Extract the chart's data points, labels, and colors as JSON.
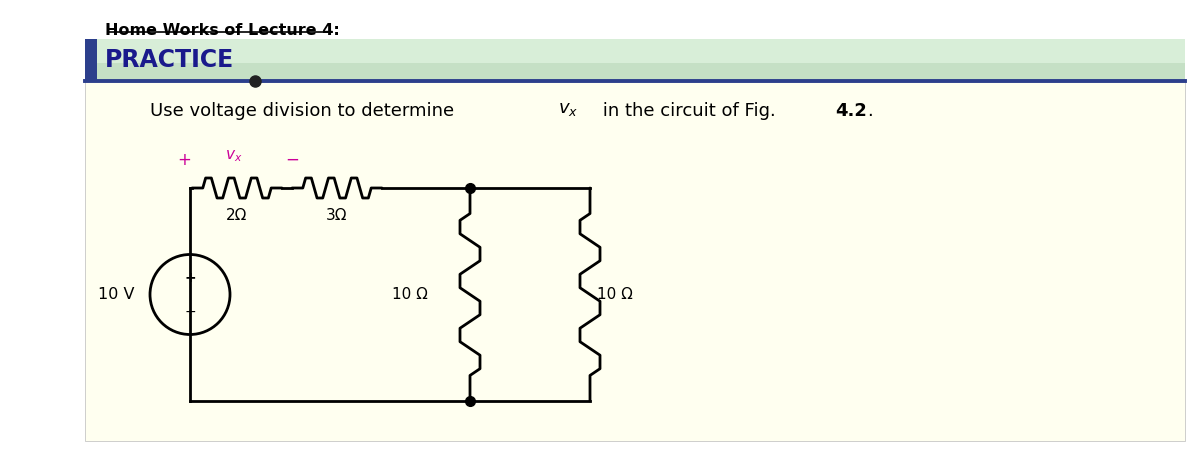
{
  "title": "Home Works of Lecture 4:",
  "practice_label": "PRACTICE",
  "background_color": "#fffff0",
  "header_bg_color": "#c5e0c5",
  "header_bg_light": "#d8eed8",
  "border_color": "#2c3f8c",
  "practice_color": "#1a1a8c",
  "title_color": "#000000",
  "circuit_color": "#000000",
  "vx_color": "#cc0099",
  "source_label": "10 V",
  "r1_label": "2Ω",
  "r2_label": "3Ω",
  "r3_label": "10 Ω",
  "r4_label": "10 Ω",
  "fig_ref_bold": "4.2"
}
